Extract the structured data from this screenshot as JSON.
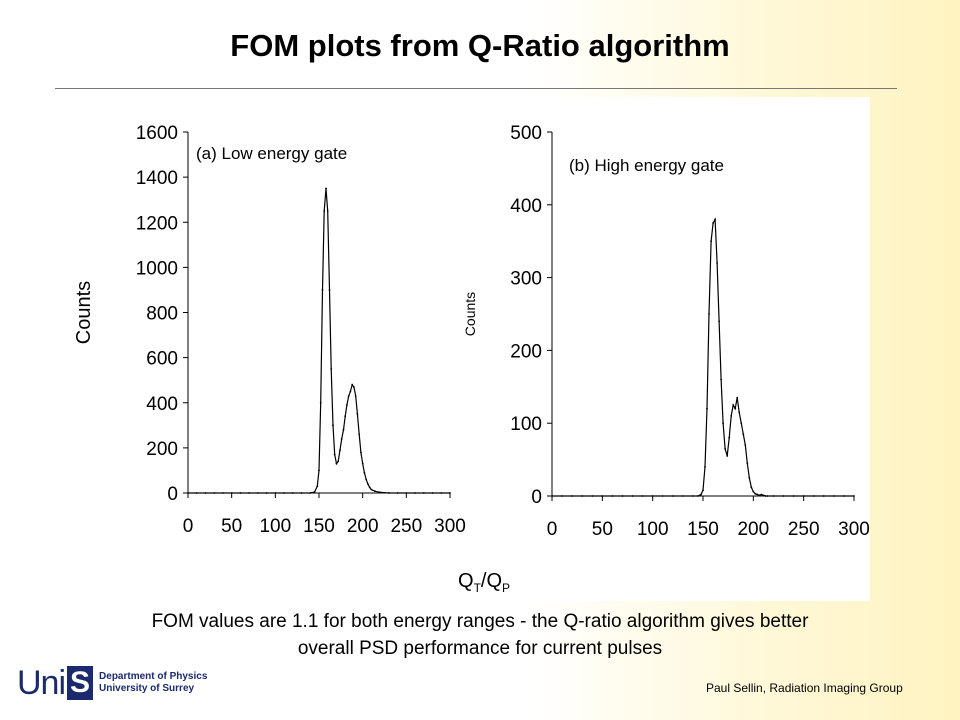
{
  "slide": {
    "title": "FOM plots from Q-Ratio algorithm",
    "caption_line1": "FOM values are 1.1 for both energy ranges - the Q-ratio algorithm gives better",
    "caption_line2": "overall PSD performance for current pulses",
    "xlabel_main": "Q",
    "xlabel_sub1": "T",
    "xlabel_slash": "/Q",
    "xlabel_sub2": "P",
    "credit": "Paul Sellin, Radiation Imaging Group",
    "logo_word": "Uni",
    "logo_letter": "S",
    "logo_line1": "Department of Physics",
    "logo_line2": "University of Surrey"
  },
  "chart_data": [
    {
      "type": "line",
      "annotation": "(a) Low energy gate",
      "ylabel": "Counts",
      "xlim": [
        0,
        300
      ],
      "ylim": [
        0,
        1600
      ],
      "xticks": [
        0,
        50,
        100,
        150,
        200,
        250,
        300
      ],
      "yticks": [
        0,
        200,
        400,
        600,
        800,
        1000,
        1200,
        1400,
        1600
      ],
      "x": [
        0,
        10,
        20,
        30,
        40,
        50,
        60,
        70,
        80,
        90,
        100,
        110,
        120,
        130,
        140,
        145,
        148,
        150,
        152,
        154,
        156,
        158,
        160,
        162,
        164,
        166,
        168,
        170,
        172,
        174,
        176,
        178,
        180,
        182,
        184,
        186,
        188,
        190,
        192,
        194,
        196,
        198,
        200,
        202,
        204,
        206,
        208,
        210,
        214,
        220,
        230,
        240,
        250,
        260,
        270,
        280,
        290,
        300
      ],
      "y": [
        0,
        0,
        0,
        0,
        0,
        0,
        0,
        0,
        0,
        0,
        0,
        0,
        0,
        0,
        0,
        5,
        30,
        100,
        400,
        900,
        1250,
        1350,
        1250,
        900,
        550,
        300,
        170,
        130,
        140,
        190,
        240,
        280,
        340,
        390,
        430,
        450,
        480,
        470,
        430,
        350,
        260,
        180,
        130,
        90,
        60,
        40,
        25,
        15,
        8,
        3,
        0,
        0,
        0,
        0,
        0,
        0,
        0,
        0
      ]
    },
    {
      "type": "line",
      "annotation": "(b) High energy gate",
      "ylabel": "Counts",
      "xlim": [
        0,
        300
      ],
      "ylim": [
        0,
        500
      ],
      "xticks": [
        0,
        50,
        100,
        150,
        200,
        250,
        300
      ],
      "yticks": [
        0,
        100,
        200,
        300,
        400,
        500
      ],
      "x": [
        0,
        10,
        20,
        30,
        40,
        50,
        60,
        70,
        80,
        90,
        100,
        110,
        120,
        130,
        140,
        145,
        148,
        150,
        152,
        154,
        156,
        158,
        160,
        162,
        164,
        166,
        168,
        170,
        172,
        174,
        176,
        178,
        180,
        182,
        184,
        186,
        188,
        190,
        192,
        194,
        196,
        198,
        200,
        202,
        204,
        206,
        208,
        210,
        212,
        214,
        220,
        230,
        240,
        250,
        260,
        270,
        280,
        290,
        300
      ],
      "y": [
        0,
        0,
        0,
        0,
        0,
        0,
        0,
        0,
        0,
        0,
        0,
        0,
        0,
        0,
        0,
        0,
        2,
        8,
        40,
        120,
        250,
        350,
        375,
        380,
        320,
        240,
        160,
        100,
        65,
        55,
        80,
        110,
        125,
        120,
        135,
        115,
        100,
        85,
        70,
        45,
        25,
        12,
        6,
        3,
        2,
        1,
        2,
        1,
        0,
        0,
        0,
        0,
        0,
        0,
        0,
        0,
        0,
        0,
        0
      ]
    }
  ]
}
